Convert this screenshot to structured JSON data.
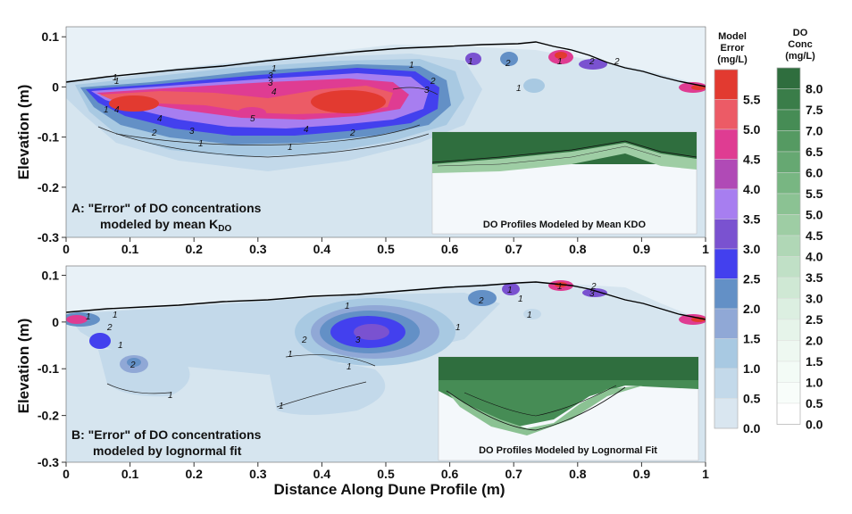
{
  "chart_data": [
    {
      "type": "heatmap",
      "panel": "A",
      "label_line1": "A: \"Error\" of DO concentrations",
      "label_line2": "modeled by mean K",
      "label_sub": "DO",
      "xlabel": "",
      "ylabel": "Elevation (m)",
      "xlim": [
        0,
        1
      ],
      "ylim": [
        -0.3,
        0.12
      ],
      "x_ticks": [
        "0",
        "0.1",
        "0.2",
        "0.3",
        "0.4",
        "0.5",
        "0.6",
        "0.7",
        "0.8",
        "0.9",
        "1"
      ],
      "y_ticks": [
        "0.1",
        "0",
        "-0.1",
        "-0.2",
        "-0.3"
      ],
      "inset_title": "DO Profiles Modeled by Mean KDO",
      "contour_labels": [
        "1",
        "2",
        "3",
        "4",
        "5",
        "4",
        "3",
        "2",
        "1",
        "4",
        "3",
        "2",
        "1",
        "1",
        "1",
        "2",
        "1",
        "1",
        "2",
        "2",
        "4",
        "3",
        "1",
        "1",
        "1",
        "4",
        "1",
        "5"
      ]
    },
    {
      "type": "heatmap",
      "panel": "B",
      "label_line1": "B: \"Error\" of DO concentrations",
      "label_line2": "modeled by lognormal fit",
      "xlabel": "Distance Along Dune Profile (m)",
      "ylabel": "Elevation (m)",
      "xlim": [
        0,
        1
      ],
      "ylim": [
        -0.3,
        0.12
      ],
      "x_ticks": [
        "0",
        "0.1",
        "0.2",
        "0.3",
        "0.4",
        "0.5",
        "0.6",
        "0.7",
        "0.8",
        "0.9",
        "1"
      ],
      "y_ticks": [
        "0.1",
        "0",
        "-0.1",
        "-0.2",
        "-0.3"
      ],
      "inset_title": "DO Profiles Modeled by Lognormal Fit",
      "contour_labels": [
        "1",
        "2",
        "1",
        "2",
        "1",
        "1",
        "2",
        "3",
        "1",
        "1",
        "1",
        "1",
        "2",
        "1",
        "1",
        "1",
        "3",
        "2",
        "1",
        "1"
      ]
    }
  ],
  "legends": {
    "error": {
      "title_lines": [
        "Model",
        "Error",
        "(mg/L)"
      ],
      "ticks": [
        "5.5",
        "5.0",
        "4.5",
        "4.0",
        "3.5",
        "3.0",
        "2.5",
        "2.0",
        "1.5",
        "1.0",
        "0.5",
        "0.0"
      ],
      "colors": [
        "#e23a30",
        "#ec5b66",
        "#df3c92",
        "#b04ab6",
        "#a77ef0",
        "#7a52d0",
        "#4340ee",
        "#6390c6",
        "#90a8d6",
        "#a8c9e2",
        "#c3d9ea",
        "#d9e6f0"
      ]
    },
    "do": {
      "title_lines": [
        "DO",
        "Conc",
        "(mg/L)"
      ],
      "ticks": [
        "8.0",
        "7.5",
        "7.0",
        "6.5",
        "6.0",
        "5.5",
        "5.0",
        "4.5",
        "4.0",
        "3.5",
        "3.0",
        "2.5",
        "2.0",
        "1.5",
        "1.0",
        "0.5",
        "0.0"
      ],
      "colors": [
        "#2f6e3e",
        "#3a7d49",
        "#468c55",
        "#559a62",
        "#66a872",
        "#78b682",
        "#8bc293",
        "#9ecda4",
        "#b0d7b6",
        "#c0e0c6",
        "#cfe8d4",
        "#dcefe1",
        "#e6f4ea",
        "#eef8f1",
        "#f3fbf6",
        "#f8fdfa",
        "#ffffff"
      ]
    }
  },
  "colors": {
    "background": "#d6e5ef",
    "surface_line": "#000000"
  }
}
